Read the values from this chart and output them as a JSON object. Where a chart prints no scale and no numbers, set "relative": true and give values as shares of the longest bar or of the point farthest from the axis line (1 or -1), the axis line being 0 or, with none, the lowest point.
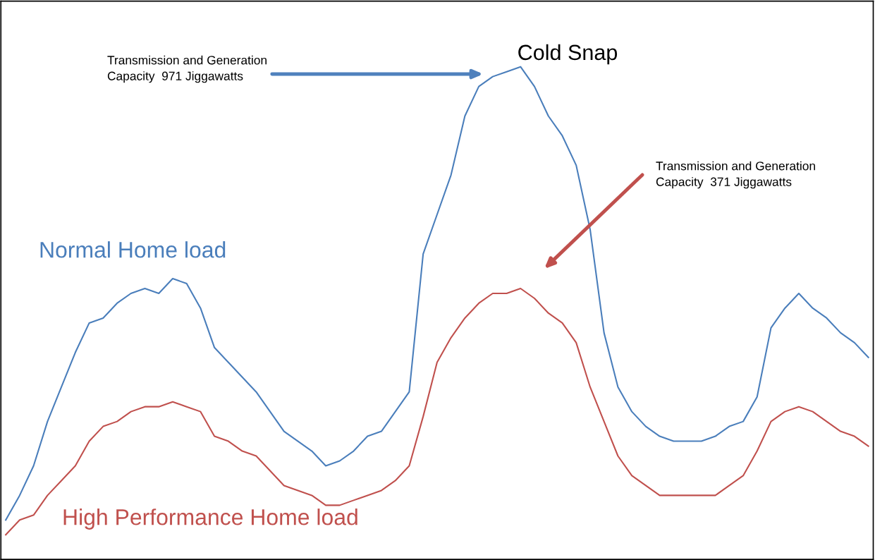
{
  "chart_data": {
    "type": "line",
    "relative": true,
    "categories": [
      null,
      null,
      null,
      null,
      null,
      null,
      null,
      null,
      null,
      null,
      null,
      null,
      null,
      null,
      null,
      null,
      null,
      null,
      null,
      null,
      null,
      null,
      null,
      null,
      null,
      null,
      null,
      null,
      null,
      null,
      null,
      null,
      null,
      null,
      null,
      null,
      null,
      null,
      null,
      null,
      null,
      null,
      null,
      null,
      null,
      null,
      null,
      null,
      null,
      null,
      null,
      null,
      null,
      null,
      null,
      null,
      null,
      null,
      null,
      null,
      null,
      null,
      null
    ],
    "series": [
      {
        "name": "Normal Home load",
        "color": "#4a7ebb",
        "values": [
          0.08,
          0.13,
          0.19,
          0.28,
          0.35,
          0.42,
          0.48,
          0.49,
          0.52,
          0.54,
          0.55,
          0.54,
          0.57,
          0.56,
          0.51,
          0.43,
          0.4,
          0.37,
          0.34,
          0.3,
          0.26,
          0.24,
          0.22,
          0.19,
          0.2,
          0.22,
          0.25,
          0.26,
          0.3,
          0.34,
          0.62,
          0.7,
          0.78,
          0.9,
          0.96,
          0.98,
          0.99,
          1.0,
          0.96,
          0.9,
          0.86,
          0.8,
          0.67,
          0.46,
          0.35,
          0.3,
          0.27,
          0.25,
          0.24,
          0.24,
          0.24,
          0.25,
          0.27,
          0.28,
          0.33,
          0.47,
          0.51,
          0.54,
          0.51,
          0.49,
          0.46,
          0.44,
          0.41
        ]
      },
      {
        "name": "High Performance Home load",
        "color": "#c0504d",
        "values": [
          0.05,
          0.08,
          0.09,
          0.13,
          0.16,
          0.19,
          0.24,
          0.27,
          0.28,
          0.3,
          0.31,
          0.31,
          0.32,
          0.31,
          0.3,
          0.25,
          0.24,
          0.22,
          0.21,
          0.18,
          0.15,
          0.14,
          0.13,
          0.11,
          0.11,
          0.12,
          0.13,
          0.14,
          0.16,
          0.19,
          0.29,
          0.4,
          0.45,
          0.49,
          0.52,
          0.54,
          0.54,
          0.55,
          0.53,
          0.5,
          0.48,
          0.44,
          0.35,
          0.28,
          0.21,
          0.17,
          0.15,
          0.13,
          0.13,
          0.13,
          0.13,
          0.13,
          0.15,
          0.17,
          0.22,
          0.28,
          0.3,
          0.31,
          0.3,
          0.28,
          0.26,
          0.25,
          0.23
        ]
      }
    ],
    "annotations": [
      "Transmission and Generation\nCapacity  971 Jiggawatts",
      "Cold Snap",
      "Transmission and Generation\nCapacity  371 Jiggawatts"
    ],
    "grid": false,
    "legend": false,
    "marker": "none",
    "line_style": "solid"
  }
}
